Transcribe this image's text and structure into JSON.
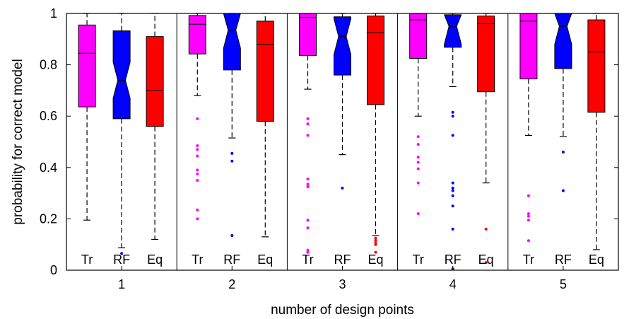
{
  "chart_data": {
    "type": "boxplot",
    "xlabel": "number of design points",
    "ylabel": "probability for correct model",
    "ylim": [
      0,
      1
    ],
    "yticks": [
      "0",
      "0.2",
      "0.4",
      "0.6",
      "0.8",
      "1"
    ],
    "grid": false,
    "groups": [
      {
        "label": "1",
        "boxes": [
          {
            "name": "Tr",
            "color": "#ff00ff",
            "notch": false,
            "whisker_low": 0.195,
            "q1": 0.636,
            "median": 0.845,
            "q3": 0.955,
            "whisker_high": 1.0,
            "outliers": []
          },
          {
            "name": "RF",
            "color": "#0000ff",
            "notch": true,
            "whisker_low": 0.087,
            "q1": 0.59,
            "median": 0.74,
            "q3": 0.932,
            "whisker_high": 1.0,
            "outliers": [
              0.065
            ]
          },
          {
            "name": "Eq",
            "color": "#ff0000",
            "notch": false,
            "whisker_low": 0.12,
            "q1": 0.56,
            "median": 0.7,
            "q3": 0.91,
            "whisker_high": 1.0,
            "outliers": []
          }
        ]
      },
      {
        "label": "2",
        "boxes": [
          {
            "name": "Tr",
            "color": "#ff00ff",
            "notch": false,
            "whisker_low": 0.68,
            "q1": 0.842,
            "median": 0.958,
            "q3": 0.992,
            "whisker_high": 1.0,
            "outliers": [
              0.59,
              0.485,
              0.47,
              0.445,
              0.39,
              0.375,
              0.35,
              0.235,
              0.2
            ]
          },
          {
            "name": "RF",
            "color": "#0000ff",
            "notch": true,
            "whisker_low": 0.515,
            "q1": 0.78,
            "median": 0.935,
            "q3": 1.0,
            "whisker_high": 1.0,
            "outliers": [
              0.455,
              0.425,
              0.135
            ]
          },
          {
            "name": "Eq",
            "color": "#ff0000",
            "notch": false,
            "whisker_low": 0.13,
            "q1": 0.58,
            "median": 0.88,
            "q3": 0.97,
            "whisker_high": 1.0,
            "outliers": []
          }
        ]
      },
      {
        "label": "3",
        "boxes": [
          {
            "name": "Tr",
            "color": "#ff00ff",
            "notch": false,
            "whisker_low": 0.705,
            "q1": 0.836,
            "median": 0.985,
            "q3": 1.0,
            "whisker_high": 1.0,
            "outliers": [
              0.59,
              0.57,
              0.525,
              0.355,
              0.335,
              0.325,
              0.195,
              0.165,
              0.078,
              0.07
            ]
          },
          {
            "name": "RF",
            "color": "#0000ff",
            "notch": true,
            "whisker_low": 0.45,
            "q1": 0.76,
            "median": 0.91,
            "q3": 0.987,
            "whisker_high": 1.0,
            "outliers": [
              0.32
            ]
          },
          {
            "name": "Eq",
            "color": "#ff0000",
            "notch": false,
            "whisker_low": 0.135,
            "q1": 0.645,
            "median": 0.925,
            "q3": 0.99,
            "whisker_high": 1.0,
            "outliers": [
              0.125,
              0.115,
              0.105,
              0.1,
              0.07
            ]
          }
        ]
      },
      {
        "label": "4",
        "boxes": [
          {
            "name": "Tr",
            "color": "#ff00ff",
            "notch": false,
            "whisker_low": 0.6,
            "q1": 0.825,
            "median": 0.975,
            "q3": 1.0,
            "whisker_high": 1.0,
            "outliers": [
              0.52,
              0.49,
              0.44,
              0.42,
              0.395,
              0.34,
              0.22
            ]
          },
          {
            "name": "RF",
            "color": "#0000ff",
            "notch": true,
            "whisker_low": 0.715,
            "q1": 0.868,
            "median": 0.95,
            "q3": 0.995,
            "whisker_high": 1.0,
            "outliers": [
              0.615,
              0.6,
              0.525,
              0.34,
              0.32,
              0.31,
              0.29,
              0.25,
              0.16,
              0.005
            ]
          },
          {
            "name": "Eq",
            "color": "#ff0000",
            "notch": false,
            "whisker_low": 0.34,
            "q1": 0.695,
            "median": 0.96,
            "q3": 0.99,
            "whisker_high": 1.0,
            "outliers": [
              0.16,
              0.03
            ]
          }
        ]
      },
      {
        "label": "5",
        "boxes": [
          {
            "name": "Tr",
            "color": "#ff00ff",
            "notch": false,
            "whisker_low": 0.525,
            "q1": 0.745,
            "median": 0.97,
            "q3": 1.0,
            "whisker_high": 1.0,
            "outliers": [
              0.29,
              0.22,
              0.21,
              0.195,
              0.115
            ]
          },
          {
            "name": "RF",
            "color": "#0000ff",
            "notch": true,
            "whisker_low": 0.52,
            "q1": 0.785,
            "median": 0.95,
            "q3": 1.0,
            "whisker_high": 1.0,
            "outliers": [
              0.46,
              0.31
            ]
          },
          {
            "name": "Eq",
            "color": "#ff0000",
            "notch": false,
            "whisker_low": 0.08,
            "q1": 0.615,
            "median": 0.85,
            "q3": 0.975,
            "whisker_high": 1.0,
            "outliers": []
          }
        ]
      }
    ]
  }
}
